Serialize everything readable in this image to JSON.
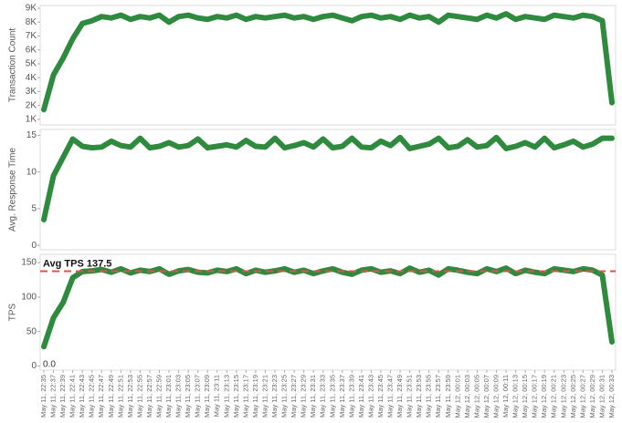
{
  "chart_data": [
    {
      "type": "line",
      "y_label": "Transaction Count",
      "color": "#2e8b3e",
      "ylim": [
        600,
        9200
      ],
      "yticks": [
        {
          "value": 1000,
          "label": "1K"
        },
        {
          "value": 2000,
          "label": "2K"
        },
        {
          "value": 3000,
          "label": "3K"
        },
        {
          "value": 4000,
          "label": "4K"
        },
        {
          "value": 5000,
          "label": "5K"
        },
        {
          "value": 6000,
          "label": "6K"
        },
        {
          "value": 7000,
          "label": "7K"
        },
        {
          "value": 8000,
          "label": "8K"
        },
        {
          "value": 9000,
          "label": "9K"
        }
      ],
      "values": [
        1700,
        4200,
        5400,
        6800,
        7900,
        8100,
        8400,
        8300,
        8500,
        8200,
        8400,
        8300,
        8500,
        8000,
        8400,
        8500,
        8300,
        8200,
        8400,
        8300,
        8500,
        8200,
        8400,
        8300,
        8400,
        8500,
        8300,
        8400,
        8200,
        8400,
        8500,
        8300,
        8100,
        8400,
        8500,
        8300,
        8400,
        8200,
        8500,
        8300,
        8400,
        8000,
        8500,
        8400,
        8300,
        8200,
        8500,
        8300,
        8600,
        8200,
        8400,
        8300,
        8200,
        8500,
        8400,
        8300,
        8500,
        8400,
        8100,
        2200
      ]
    },
    {
      "type": "line",
      "y_label": "Avg. Response Time",
      "color": "#2e8b3e",
      "ylim": [
        -0.6,
        15.8
      ],
      "yticks": [
        0,
        5,
        10,
        15
      ],
      "values": [
        3.5,
        9.5,
        12,
        14.5,
        13.5,
        13.3,
        13.4,
        14.2,
        13.6,
        13.4,
        14.6,
        13.3,
        13.5,
        14.0,
        13.4,
        13.6,
        14.5,
        13.3,
        13.5,
        13.7,
        13.4,
        14.3,
        13.5,
        13.4,
        14.6,
        13.3,
        13.6,
        14.0,
        13.4,
        14.5,
        13.3,
        13.5,
        14.6,
        13.4,
        13.3,
        14.2,
        13.6,
        14.7,
        13.2,
        13.5,
        13.8,
        14.6,
        13.3,
        13.5,
        14.4,
        13.4,
        13.6,
        14.7,
        13.2,
        13.5,
        14.0,
        13.4,
        14.6,
        13.3,
        13.7,
        14.2,
        13.4,
        13.8,
        14.6,
        14.6
      ]
    },
    {
      "type": "line",
      "y_label": "TPS",
      "color": "#2e8b3e",
      "ylim": [
        -6,
        162
      ],
      "yticks": [
        0,
        50,
        100,
        150
      ],
      "reference": {
        "label": "Avg TPS 137.5",
        "value": 137.5,
        "color": "#d9534f"
      },
      "corner_label": "0.0",
      "categories": [
        "May 11, 22:35",
        "May 11, 22:37",
        "May 11, 22:39",
        "May 11, 22:41",
        "May 11, 22:43",
        "May 11, 22:45",
        "May 11, 22:47",
        "May 11, 22:49",
        "May 11, 22:51",
        "May 11, 22:53",
        "May 11, 22:55",
        "May 11, 22:57",
        "May 11, 22:59",
        "May 11, 23:01",
        "May 11, 23:03",
        "May 11, 23:05",
        "May 11, 23:07",
        "May 11, 23:09",
        "May 11, 23:11",
        "May 11, 23:13",
        "May 11, 23:15",
        "May 11, 23:17",
        "May 11, 23:19",
        "May 11, 23:21",
        "May 11, 23:23",
        "May 11, 23:25",
        "May 11, 23:27",
        "May 11, 23:29",
        "May 11, 23:31",
        "May 11, 23:33",
        "May 11, 23:35",
        "May 11, 23:37",
        "May 11, 23:39",
        "May 11, 23:41",
        "May 11, 23:43",
        "May 11, 23:45",
        "May 11, 23:47",
        "May 11, 23:49",
        "May 11, 23:51",
        "May 11, 23:53",
        "May 11, 23:55",
        "May 11, 23:57",
        "May 11, 23:59",
        "May 12, 00:01",
        "May 12, 00:03",
        "May 12, 00:05",
        "May 12, 00:07",
        "May 12, 00:09",
        "May 12, 00:11",
        "May 12, 00:13",
        "May 12, 00:15",
        "May 12, 00:17",
        "May 12, 00:19",
        "May 12, 00:21",
        "May 12, 00:23",
        "May 12, 00:25",
        "May 12, 00:27",
        "May 12, 00:29",
        "May 12, 00:31",
        "May 12, 00:33"
      ],
      "values": [
        28,
        70,
        92,
        128,
        137,
        138,
        140,
        136,
        141,
        135,
        139,
        137,
        141,
        133,
        138,
        140,
        136,
        135,
        139,
        137,
        141,
        134,
        139,
        136,
        138,
        141,
        136,
        139,
        134,
        138,
        141,
        136,
        133,
        139,
        141,
        136,
        138,
        134,
        142,
        136,
        139,
        132,
        141,
        139,
        136,
        134,
        141,
        137,
        142,
        134,
        139,
        136,
        134,
        141,
        139,
        137,
        141,
        139,
        132,
        35
      ]
    }
  ]
}
